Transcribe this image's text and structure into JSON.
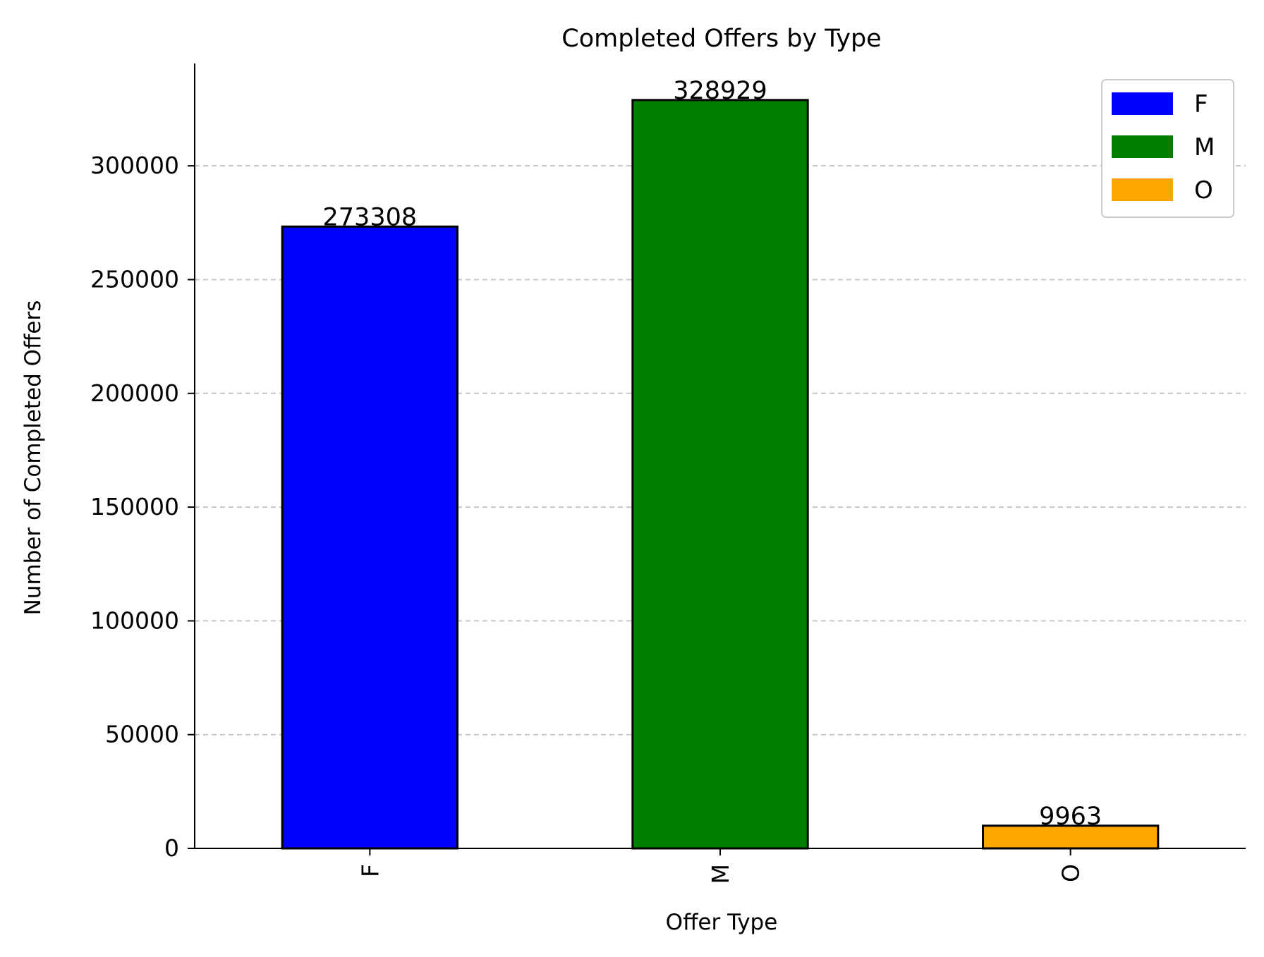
{
  "chart_data": {
    "type": "bar",
    "title": "Completed Offers by Type",
    "xlabel": "Offer Type",
    "ylabel": "Number of Completed Offers",
    "categories": [
      "F",
      "M",
      "O"
    ],
    "values": [
      273308,
      328929,
      9963
    ],
    "data_labels": [
      "273308",
      "328929",
      "9963"
    ],
    "colors": [
      "#0000ff",
      "#008000",
      "#ffa500"
    ],
    "ylim": [
      0,
      345000
    ],
    "yticks": [
      0,
      50000,
      100000,
      150000,
      200000,
      250000,
      300000
    ],
    "ytick_labels": [
      "0",
      "50000",
      "100000",
      "150000",
      "200000",
      "250000",
      "300000"
    ],
    "grid": "y-dashed",
    "legend": {
      "placement": "top-right",
      "entries": [
        "F",
        "M",
        "O"
      ]
    },
    "xtick_rotation": "vertical"
  }
}
